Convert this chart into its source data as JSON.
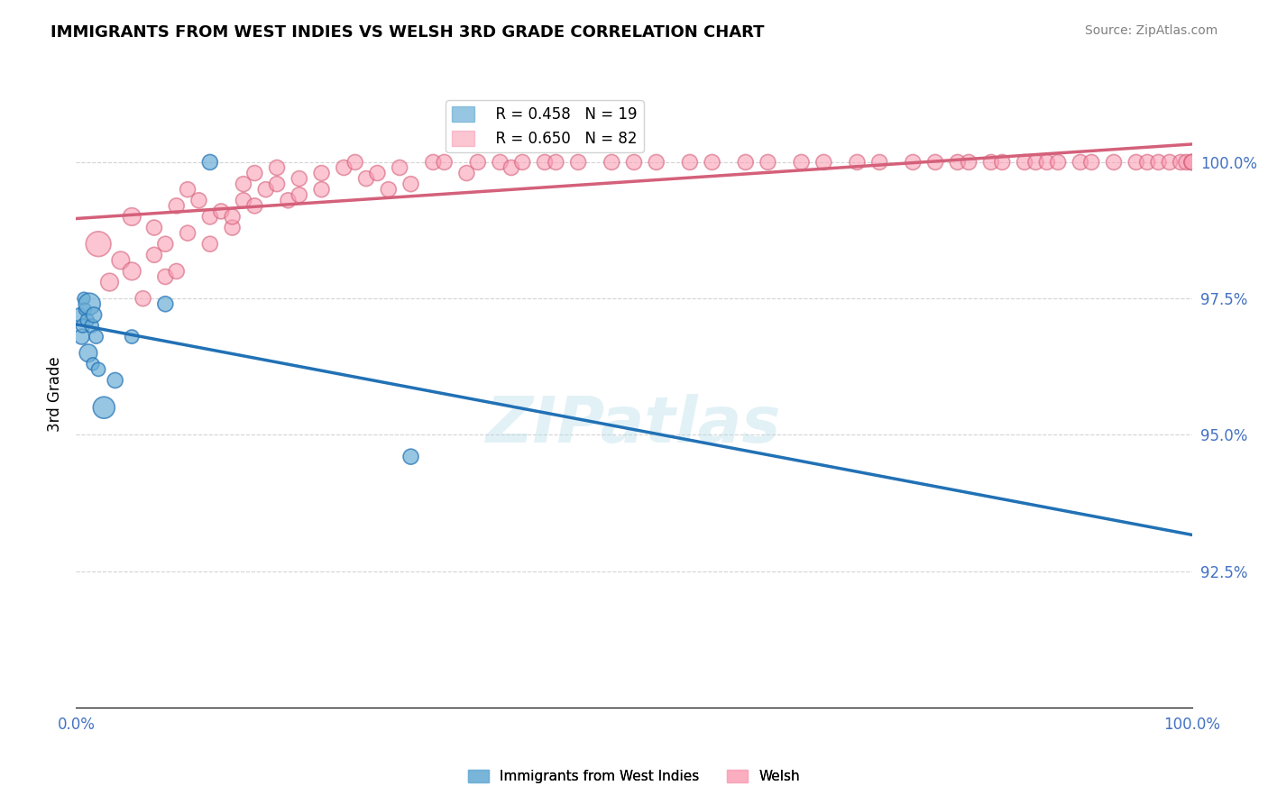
{
  "title": "IMMIGRANTS FROM WEST INDIES VS WELSH 3RD GRADE CORRELATION CHART",
  "source": "Source: ZipAtlas.com",
  "xlabel": "",
  "ylabel": "3rd Grade",
  "legend_blue_label": "Immigrants from West Indies",
  "legend_pink_label": "Welsh",
  "r_blue": 0.458,
  "n_blue": 19,
  "r_pink": 0.65,
  "n_pink": 82,
  "blue_color": "#6baed6",
  "pink_color": "#fa9fb5",
  "blue_line_color": "#2171b5",
  "pink_line_color": "#d4607a",
  "xlim": [
    0.0,
    100.0
  ],
  "ylim": [
    90.0,
    101.5
  ],
  "yticks": [
    92.5,
    95.0,
    97.5,
    100.0
  ],
  "ytick_labels": [
    "92.5%",
    "95.0%",
    "97.5%",
    "100.0%"
  ],
  "xtick_labels": [
    "0.0%",
    "100.0%"
  ],
  "watermark": "ZIPatlas",
  "blue_scatter_x": [
    0.3,
    0.5,
    0.6,
    0.7,
    0.8,
    1.0,
    1.1,
    1.2,
    1.4,
    1.5,
    1.6,
    1.8,
    2.0,
    2.5,
    3.5,
    5.0,
    8.0,
    12.0,
    30.0
  ],
  "blue_scatter_y": [
    97.2,
    96.8,
    97.0,
    97.5,
    97.3,
    97.1,
    96.5,
    97.4,
    97.0,
    96.3,
    97.2,
    96.8,
    96.2,
    95.5,
    96.0,
    96.8,
    97.4,
    100.0,
    94.6
  ],
  "blue_scatter_sizes": [
    120,
    150,
    120,
    100,
    100,
    120,
    200,
    300,
    120,
    100,
    150,
    120,
    120,
    300,
    150,
    120,
    150,
    150,
    150
  ],
  "pink_scatter_x": [
    2,
    3,
    4,
    5,
    5,
    6,
    7,
    7,
    8,
    8,
    9,
    9,
    10,
    10,
    11,
    12,
    12,
    13,
    14,
    14,
    15,
    15,
    16,
    16,
    17,
    18,
    18,
    19,
    20,
    20,
    22,
    22,
    24,
    25,
    26,
    27,
    28,
    29,
    30,
    32,
    33,
    35,
    36,
    38,
    39,
    40,
    42,
    43,
    45,
    48,
    50,
    52,
    55,
    57,
    60,
    62,
    65,
    67,
    70,
    72,
    75,
    77,
    79,
    80,
    82,
    83,
    85,
    86,
    87,
    88,
    90,
    91,
    93,
    95,
    96,
    97,
    98,
    99,
    99.5,
    100,
    100,
    100
  ],
  "pink_scatter_y": [
    98.5,
    97.8,
    98.2,
    99.0,
    98.0,
    97.5,
    98.8,
    98.3,
    97.9,
    98.5,
    99.2,
    98.0,
    99.5,
    98.7,
    99.3,
    99.0,
    98.5,
    99.1,
    98.8,
    99.0,
    99.3,
    99.6,
    99.8,
    99.2,
    99.5,
    99.6,
    99.9,
    99.3,
    99.7,
    99.4,
    99.8,
    99.5,
    99.9,
    100.0,
    99.7,
    99.8,
    99.5,
    99.9,
    99.6,
    100.0,
    100.0,
    99.8,
    100.0,
    100.0,
    99.9,
    100.0,
    100.0,
    100.0,
    100.0,
    100.0,
    100.0,
    100.0,
    100.0,
    100.0,
    100.0,
    100.0,
    100.0,
    100.0,
    100.0,
    100.0,
    100.0,
    100.0,
    100.0,
    100.0,
    100.0,
    100.0,
    100.0,
    100.0,
    100.0,
    100.0,
    100.0,
    100.0,
    100.0,
    100.0,
    100.0,
    100.0,
    100.0,
    100.0,
    100.0,
    100.0,
    100.0,
    100.0
  ],
  "pink_scatter_sizes": [
    400,
    200,
    200,
    200,
    200,
    150,
    150,
    150,
    150,
    150,
    150,
    150,
    150,
    150,
    150,
    150,
    150,
    150,
    150,
    150,
    150,
    150,
    150,
    150,
    150,
    150,
    150,
    150,
    150,
    150,
    150,
    150,
    150,
    150,
    150,
    150,
    150,
    150,
    150,
    150,
    150,
    150,
    150,
    150,
    150,
    150,
    150,
    150,
    150,
    150,
    150,
    150,
    150,
    150,
    150,
    150,
    150,
    150,
    150,
    150,
    150,
    150,
    150,
    150,
    150,
    150,
    150,
    150,
    150,
    150,
    150,
    150,
    150,
    150,
    150,
    150,
    150,
    150,
    150,
    150,
    150,
    150
  ]
}
